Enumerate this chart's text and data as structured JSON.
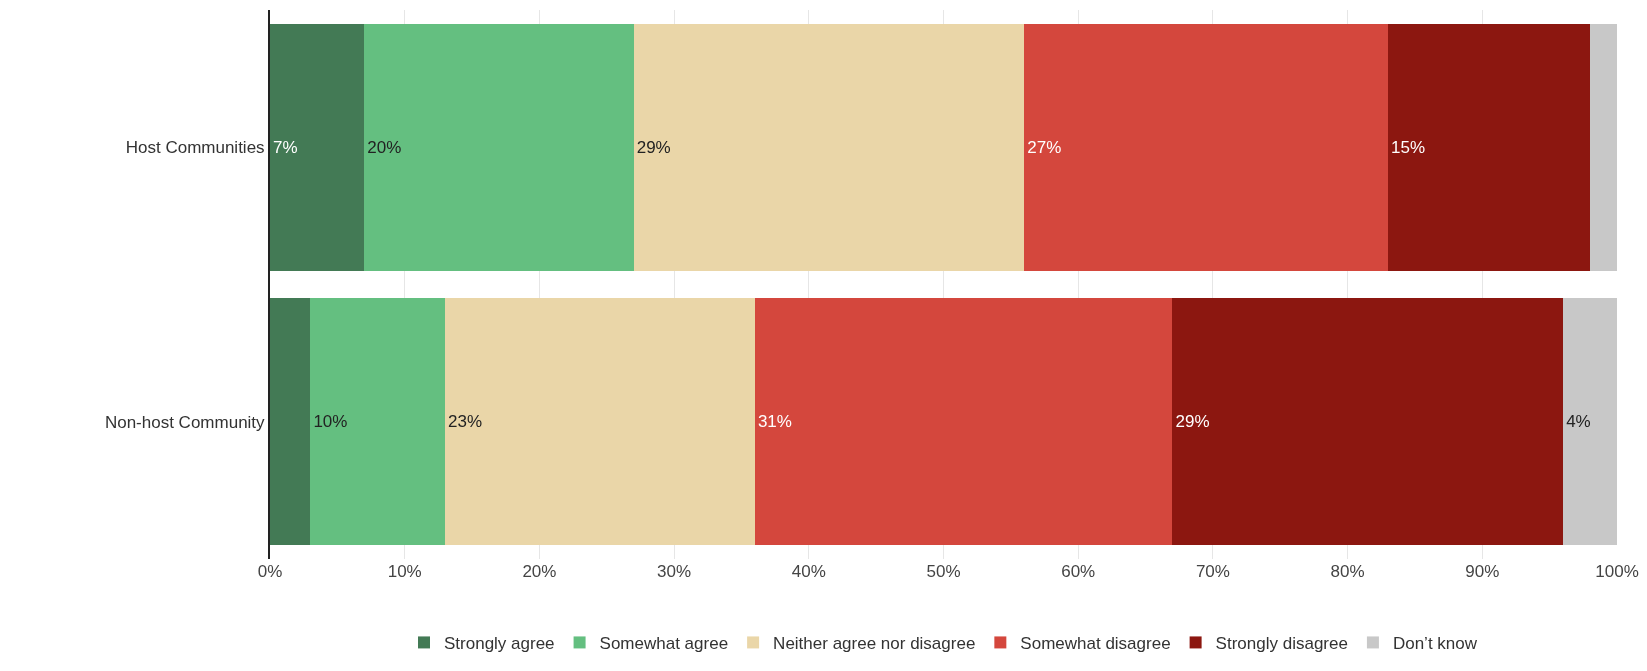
{
  "chart_data": {
    "type": "bar",
    "orientation": "horizontal",
    "stacked": true,
    "categories": [
      "Host Communities",
      "Non-host Community"
    ],
    "series": [
      {
        "name": "Strongly agree",
        "color": "#437a55",
        "values": [
          7,
          3
        ],
        "value_labels": [
          "7%",
          null
        ]
      },
      {
        "name": "Somewhat agree",
        "color": "#64bf80",
        "values": [
          20,
          10
        ],
        "value_labels": [
          "20%",
          "10%"
        ]
      },
      {
        "name": "Neither agree nor disagree",
        "color": "#ead6a8",
        "values": [
          29,
          23
        ],
        "value_labels": [
          "29%",
          "23%"
        ]
      },
      {
        "name": "Somewhat disagree",
        "color": "#d4473d",
        "values": [
          27,
          31
        ],
        "value_labels": [
          "27%",
          "31%"
        ]
      },
      {
        "name": "Strongly disagree",
        "color": "#8c1710",
        "values": [
          15,
          29
        ],
        "value_labels": [
          "15%",
          "29%"
        ]
      },
      {
        "name": "Don’t know",
        "color": "#c8c8c8",
        "values": [
          2,
          4
        ],
        "value_labels": [
          null,
          "4%"
        ]
      }
    ],
    "xlim": [
      0,
      100
    ],
    "xticks": [
      {
        "value": 0,
        "label": "0%"
      },
      {
        "value": 10,
        "label": "10%"
      },
      {
        "value": 20,
        "label": "20%"
      },
      {
        "value": 30,
        "label": "30%"
      },
      {
        "value": 40,
        "label": "40%"
      },
      {
        "value": 50,
        "label": "50%"
      },
      {
        "value": 60,
        "label": "60%"
      },
      {
        "value": 70,
        "label": "70%"
      },
      {
        "value": 80,
        "label": "80%"
      },
      {
        "value": 90,
        "label": "90%"
      },
      {
        "value": 100,
        "label": "100%"
      }
    ],
    "grid": "x",
    "legend": "bottom"
  }
}
